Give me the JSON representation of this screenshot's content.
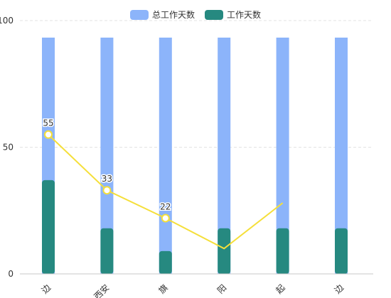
{
  "chart_data": {
    "type": "bar",
    "categories": [
      "靖边",
      "西安",
      "宁旗",
      "庆阳",
      "吴起",
      "定边"
    ],
    "category_labels_visible": [
      "边",
      "西安",
      "旗",
      "阳",
      "起",
      "边"
    ],
    "series": [
      {
        "name": "总工作天数",
        "type": "bar",
        "values": [
          100,
          100,
          100,
          100,
          100,
          100
        ],
        "color": "#8cb4fa"
      },
      {
        "name": "工作天数",
        "type": "bar",
        "values": [
          37,
          18,
          9,
          18,
          18,
          18
        ],
        "color": "#268980"
      },
      {
        "type": "line",
        "values": [
          55,
          33,
          22,
          10,
          28,
          null
        ],
        "data_labels": [
          "55",
          "33",
          "22",
          null,
          null,
          null
        ],
        "color": "#f5df3a"
      }
    ],
    "yaxis": {
      "ticks": [
        0,
        50,
        100
      ],
      "tick_labels": [
        "0",
        "50",
        "100"
      ],
      "ylim": [
        0,
        100
      ]
    },
    "grid": true,
    "legend_position": "top-center"
  }
}
